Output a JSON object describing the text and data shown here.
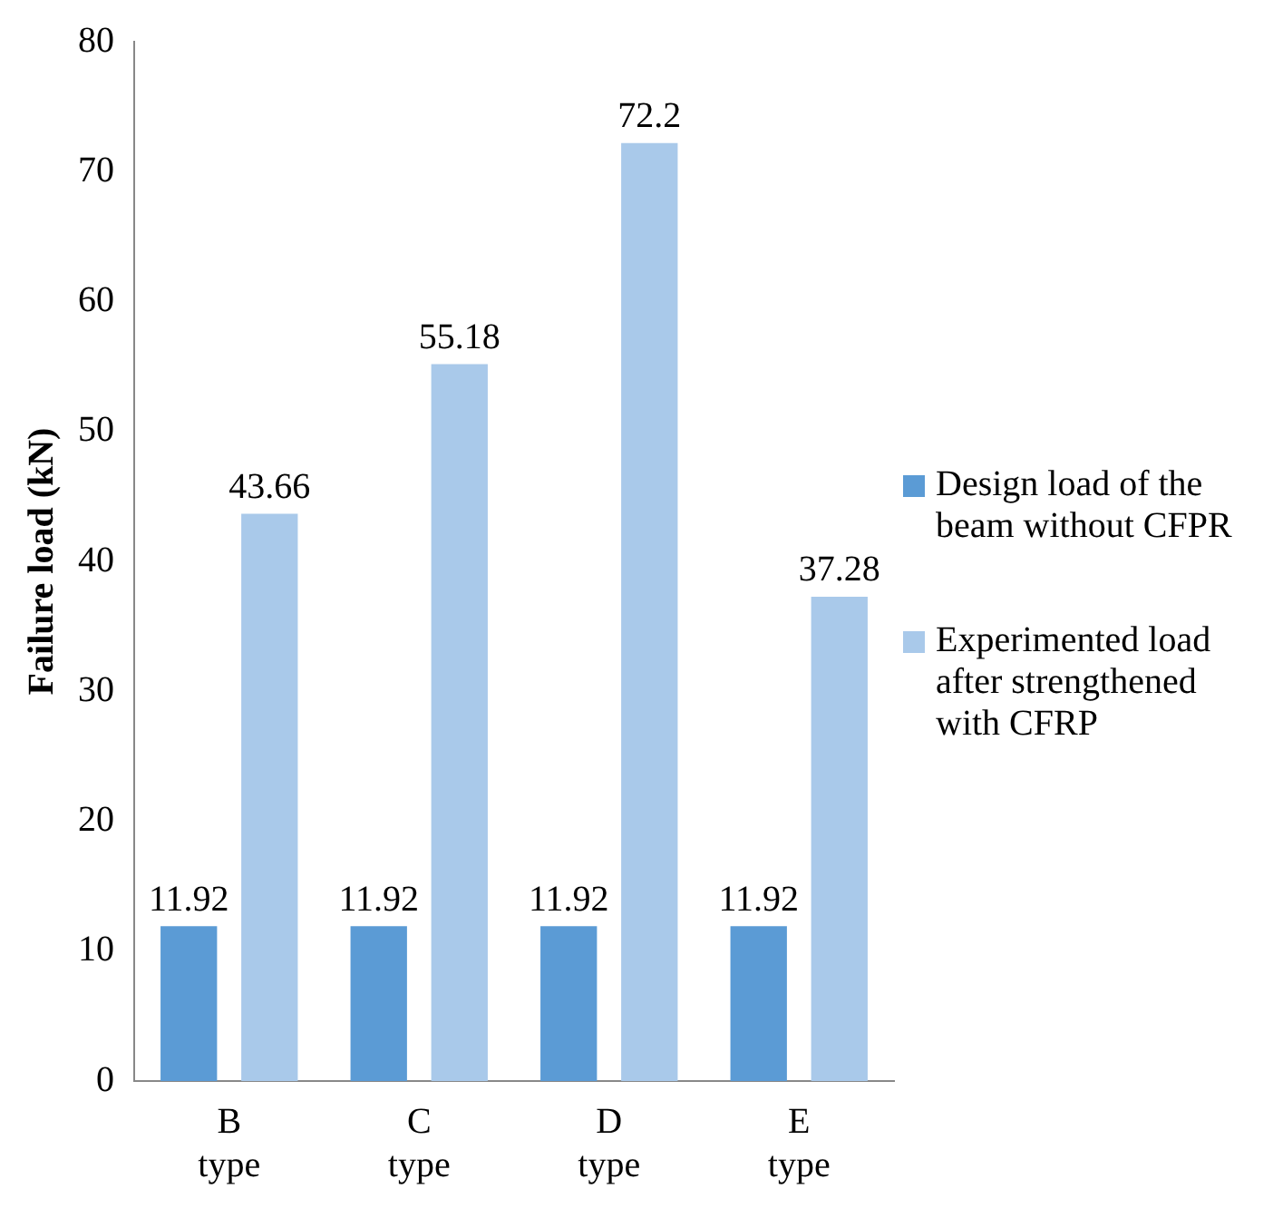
{
  "chart_data": {
    "type": "bar",
    "ylabel": "Failure load (kN)",
    "categories": [
      "B type",
      "C type",
      "D type",
      "E type"
    ],
    "series": [
      {
        "name": "Design load of the beam without CFPR",
        "color": "#5b9bd5",
        "values": [
          11.92,
          11.92,
          11.92,
          11.92
        ]
      },
      {
        "name": "Experimented load after strengthened with CFRP",
        "color": "#a9c9ea",
        "values": [
          43.66,
          55.18,
          72.2,
          37.28
        ]
      }
    ],
    "ylim": [
      0,
      80
    ],
    "yticks": [
      0,
      10,
      20,
      30,
      40,
      50,
      60,
      70,
      80
    ],
    "grid": false,
    "legend": "right",
    "data_labels": true
  }
}
